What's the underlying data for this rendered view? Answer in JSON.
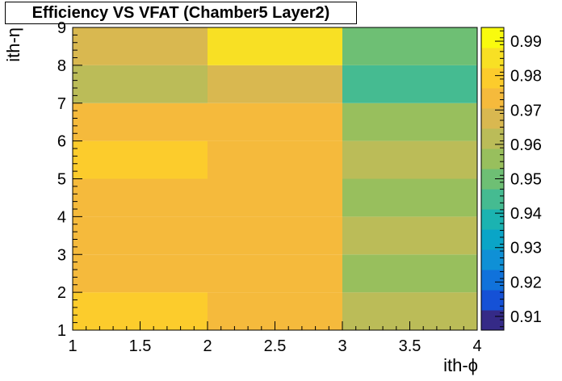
{
  "chart_data": {
    "type": "heatmap",
    "title": "Efficiency VS VFAT (Chamber5 Layer2)",
    "xlabel": "ith-ϕ",
    "ylabel": "ith-η",
    "xlim": [
      1,
      4
    ],
    "ylim": [
      1,
      9
    ],
    "x_edges": [
      1,
      2,
      3,
      4
    ],
    "y_edges": [
      1,
      2,
      3,
      4,
      5,
      6,
      7,
      8,
      9
    ],
    "x_ticks": [
      "1",
      "1.5",
      "2",
      "2.5",
      "3",
      "3.5",
      "4"
    ],
    "y_ticks": [
      "1",
      "2",
      "3",
      "4",
      "5",
      "6",
      "7",
      "8",
      "9"
    ],
    "z_range": [
      0.906,
      0.994
    ],
    "z_ticks": [
      "0.91",
      "0.92",
      "0.93",
      "0.94",
      "0.95",
      "0.96",
      "0.97",
      "0.98",
      "0.99"
    ],
    "values": [
      [
        0.981,
        0.975,
        0.962
      ],
      [
        0.975,
        0.975,
        0.958
      ],
      [
        0.975,
        0.975,
        0.962
      ],
      [
        0.975,
        0.975,
        0.958
      ],
      [
        0.981,
        0.975,
        0.962
      ],
      [
        0.975,
        0.975,
        0.956
      ],
      [
        0.964,
        0.97,
        0.946
      ],
      [
        0.97,
        0.983,
        0.952
      ]
    ],
    "palette": [
      "#352a87",
      "#1551d6",
      "#1072db",
      "#0f90d6",
      "#0aa5c7",
      "#1bb3b1",
      "#45bb91",
      "#6ebf74",
      "#98bf5d",
      "#bbbc58",
      "#d9b850",
      "#f5ba3c",
      "#fccc2c",
      "#f8e024",
      "#f9fb0e"
    ]
  }
}
